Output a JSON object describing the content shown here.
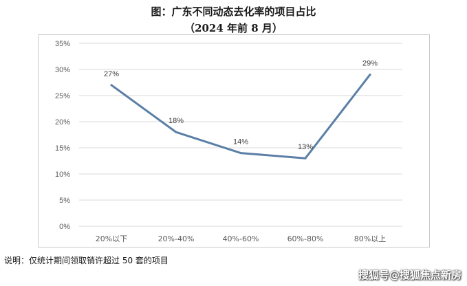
{
  "chart_data": {
    "type": "line",
    "title": "图：广东不同动态去化率的项目占比",
    "subtitle": "（2024 年前 8 月）",
    "categories": [
      "20%以下",
      "20%-40%",
      "40%-60%",
      "60%-80%",
      "80%以上"
    ],
    "series": [
      {
        "values": [
          27,
          18,
          14,
          13,
          29
        ]
      }
    ],
    "data_labels": [
      "27%",
      "18%",
      "14%",
      "13%",
      "29%"
    ],
    "y_ticks": [
      "0%",
      "5%",
      "10%",
      "15%",
      "20%",
      "25%",
      "30%",
      "35%"
    ],
    "ylim": [
      0,
      35
    ],
    "grid": true,
    "line_color": "#5b7fa6",
    "grid_color": "#d9d9d9"
  },
  "note": "说明：仅统计期间领取销许超过 50 套的项目",
  "watermark": "搜狐号@搜狐焦点新房"
}
